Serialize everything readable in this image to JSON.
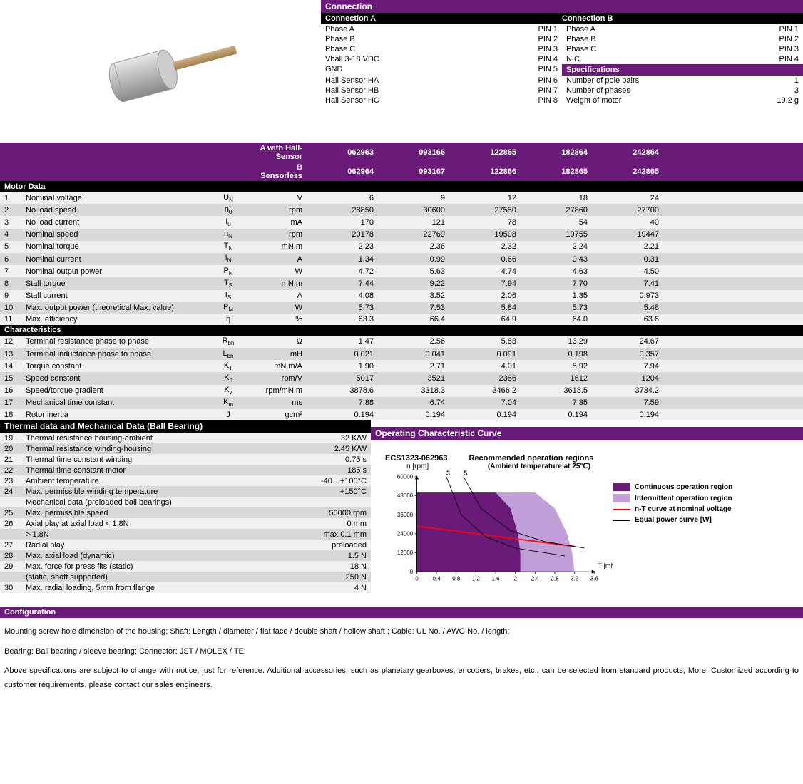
{
  "connection": {
    "title": "Connection",
    "a_title": "Connection A",
    "b_title": "Connection B",
    "a_rows": [
      {
        "label": "Phase A",
        "pin": "PIN 1"
      },
      {
        "label": "Phase B",
        "pin": "PIN 2"
      },
      {
        "label": "Phase C",
        "pin": "PIN 3"
      },
      {
        "label": "Vhall 3-18 VDC",
        "pin": "PIN 4"
      },
      {
        "label": "GND",
        "pin": "PIN 5"
      },
      {
        "label": "Hall Sensor HA",
        "pin": "PIN 6"
      },
      {
        "label": "Hall Sensor HB",
        "pin": "PIN 7"
      },
      {
        "label": "Hall Sensor HC",
        "pin": "PIN 8"
      }
    ],
    "b_rows": [
      {
        "label": "Phase A",
        "pin": "PIN 1"
      },
      {
        "label": "Phase B",
        "pin": "PIN 2"
      },
      {
        "label": "Phase C",
        "pin": "PIN 3"
      },
      {
        "label": "N.C.",
        "pin": "PIN 4"
      }
    ],
    "spec_title": "Specifications",
    "specs": [
      {
        "label": "Number of pole pairs",
        "val": "1"
      },
      {
        "label": "Number of phases",
        "val": "3"
      },
      {
        "label": "Weight of motor",
        "val": "19.2 g"
      }
    ]
  },
  "table_header": {
    "line1": "A with Hall-Sensor",
    "line2": "B Sensorless",
    "cols": [
      "062963",
      "093166",
      "122865",
      "182864",
      "242864"
    ],
    "cols2": [
      "062964",
      "093167",
      "122866",
      "182865",
      "242865"
    ]
  },
  "motor_data": {
    "title": "Motor Data",
    "rows": [
      {
        "n": "1",
        "label": "Nominal voltage",
        "sym": "U",
        "sub": "N",
        "unit": "V",
        "v": [
          "6",
          "9",
          "12",
          "18",
          "24"
        ]
      },
      {
        "n": "2",
        "label": "No load speed",
        "sym": "n",
        "sub": "0",
        "unit": "rpm",
        "v": [
          "28850",
          "30600",
          "27550",
          "27860",
          "27700"
        ]
      },
      {
        "n": "3",
        "label": "No load current",
        "sym": "I",
        "sub": "0",
        "unit": "mA",
        "v": [
          "170",
          "121",
          "78",
          "54",
          "40"
        ]
      },
      {
        "n": "4",
        "label": "Nominal speed",
        "sym": "n",
        "sub": "N",
        "unit": "rpm",
        "v": [
          "20178",
          "22769",
          "19508",
          "19755",
          "19447"
        ]
      },
      {
        "n": "5",
        "label": "Nominal torque",
        "sym": "T",
        "sub": "N",
        "unit": "mN.m",
        "v": [
          "2.23",
          "2.36",
          "2.32",
          "2.24",
          "2.21"
        ]
      },
      {
        "n": "6",
        "label": "Nominal current",
        "sym": "I",
        "sub": "N",
        "unit": "A",
        "v": [
          "1.34",
          "0.99",
          "0.66",
          "0.43",
          "0.31"
        ]
      },
      {
        "n": "7",
        "label": "Nominal output power",
        "sym": "P",
        "sub": "N",
        "unit": "W",
        "v": [
          "4.72",
          "5.63",
          "4.74",
          "4.63",
          "4.50"
        ]
      },
      {
        "n": "8",
        "label": "Stall torque",
        "sym": "T",
        "sub": "S",
        "unit": "mN.m",
        "v": [
          "7.44",
          "9.22",
          "7.94",
          "7.70",
          "7.41"
        ]
      },
      {
        "n": "9",
        "label": "Stall current",
        "sym": "I",
        "sub": "S",
        "unit": "A",
        "v": [
          "4.08",
          "3.52",
          "2.06",
          "1.35",
          "0.973"
        ]
      },
      {
        "n": "10",
        "label": "Max. output power (theoretical Max. value)",
        "sym": "P",
        "sub": "M",
        "unit": "W",
        "v": [
          "5.73",
          "7.53",
          "5.84",
          "5.73",
          "5.48"
        ]
      },
      {
        "n": "11",
        "label": "Max. efficiency",
        "sym": "η",
        "sub": "",
        "unit": "%",
        "v": [
          "63.3",
          "66.4",
          "64.9",
          "64.0",
          "63.6"
        ]
      }
    ]
  },
  "characteristics": {
    "title": "Characteristics",
    "rows": [
      {
        "n": "12",
        "label": "Terminal resistance phase to phase",
        "sym": "R",
        "sub": "bh",
        "unit": "Ω",
        "v": [
          "1.47",
          "2.56",
          "5.83",
          "13.29",
          "24.67"
        ]
      },
      {
        "n": "13",
        "label": "Terminal inductance phase to phase",
        "sym": "L",
        "sub": "bh",
        "unit": "mH",
        "v": [
          "0.021",
          "0.041",
          "0.091",
          "0.198",
          "0.357"
        ]
      },
      {
        "n": "14",
        "label": "Torque constant",
        "sym": "K",
        "sub": "T",
        "unit": "mN.m/A",
        "v": [
          "1.90",
          "2.71",
          "4.01",
          "5.92",
          "7.94"
        ]
      },
      {
        "n": "15",
        "label": "Speed constant",
        "sym": "K",
        "sub": "n",
        "unit": "rpm/V",
        "v": [
          "5017",
          "3521",
          "2386",
          "1612",
          "1204"
        ]
      },
      {
        "n": "16",
        "label": "Speed/torque gradient",
        "sym": "K",
        "sub": "v",
        "unit": "rpm/mN.m",
        "v": [
          "3878.6",
          "3318.3",
          "3466.2",
          "3618.5",
          "3734.2"
        ]
      },
      {
        "n": "17",
        "label": "Mechanical time constant",
        "sym": "K",
        "sub": "m",
        "unit": "ms",
        "v": [
          "7.88",
          "6.74",
          "7.04",
          "7.35",
          "7.59"
        ]
      },
      {
        "n": "18",
        "label": "Rotor inertia",
        "sym": "J",
        "sub": "",
        "unit": "gcm²",
        "v": [
          "0.194",
          "0.194",
          "0.194",
          "0.194",
          "0.194"
        ]
      }
    ]
  },
  "thermal": {
    "title": "Thermal data and Mechanical Data (Ball Bearing)",
    "rows": [
      {
        "n": "19",
        "label": "Thermal resistance housing-ambient",
        "val": "32 K/W"
      },
      {
        "n": "20",
        "label": "Thermal resistance winding-housing",
        "val": "2.45 K/W"
      },
      {
        "n": "21",
        "label": "Thermal time constant winding",
        "val": "0.75 s"
      },
      {
        "n": "22",
        "label": "Thermal time constant motor",
        "val": "185 s"
      },
      {
        "n": "23",
        "label": "Ambient temperature",
        "val": "-40…+100°C"
      },
      {
        "n": "24",
        "label": "Max. permissible winding temperature",
        "val": "+150°C"
      },
      {
        "n": "",
        "label": "Mechanical data (preloaded ball bearings)",
        "val": ""
      },
      {
        "n": "25",
        "label": "Max. permissible speed",
        "val": "50000 rpm"
      },
      {
        "n": "26",
        "label": "Axial play at axial load < 1.8N",
        "val": "0 mm"
      },
      {
        "n": "",
        "label": "                              > 1.8N",
        "val": "max 0.1 mm"
      },
      {
        "n": "27",
        "label": "Radial play",
        "val": "preloaded"
      },
      {
        "n": "28",
        "label": "Max. axial load (dynamic)",
        "val": "1.5 N"
      },
      {
        "n": "29",
        "label": "Max. force for press fits (static)",
        "val": "18 N"
      },
      {
        "n": "",
        "label": "(static, shaft supported)",
        "val": "250 N"
      },
      {
        "n": "30",
        "label": "Max. radial loading, 5mm from flange",
        "val": "4 N"
      }
    ]
  },
  "chart": {
    "title": "Operating Characteristic Curve",
    "model": "ECS1323-062963",
    "ylabel": "n [rpm]",
    "subtitle": "Recommended operation regions",
    "subtitle2": "(Ambient temperature at 25℃)",
    "xlabel": "T [mN.m]",
    "xlim": [
      0,
      3.6
    ],
    "xticks": [
      0,
      0.4,
      0.8,
      1.2,
      1.6,
      2.0,
      2.4,
      2.8,
      3.2,
      3.6
    ],
    "ylim": [
      0,
      60000
    ],
    "yticks": [
      0,
      12000,
      24000,
      36000,
      48000,
      60000
    ],
    "continuous_color": "#6a1b7a",
    "intermittent_color": "#c19fd9",
    "nt_color": "#ff0000",
    "power_color": "#000000",
    "bg_color": "#ffffff",
    "axis_color": "#000000",
    "continuous_region": [
      [
        0,
        50000
      ],
      [
        1.6,
        50000
      ],
      [
        1.9,
        40000
      ],
      [
        2.05,
        24000
      ],
      [
        2.1,
        12000
      ],
      [
        2.1,
        0
      ],
      [
        0,
        0
      ]
    ],
    "intermittent_region": [
      [
        0,
        50000
      ],
      [
        2.4,
        50000
      ],
      [
        2.8,
        40000
      ],
      [
        3.05,
        24000
      ],
      [
        3.15,
        12000
      ],
      [
        3.2,
        0
      ],
      [
        0,
        0
      ]
    ],
    "nt_line": [
      [
        0,
        28850
      ],
      [
        3.2,
        16000
      ]
    ],
    "power_curves": [
      {
        "label": "3",
        "pts": [
          [
            0.6,
            60000
          ],
          [
            0.9,
            36000
          ],
          [
            1.4,
            22000
          ],
          [
            2.0,
            15000
          ],
          [
            3.0,
            10000
          ]
        ]
      },
      {
        "label": "5",
        "pts": [
          [
            0.95,
            60000
          ],
          [
            1.3,
            40000
          ],
          [
            1.9,
            26000
          ],
          [
            2.6,
            19000
          ],
          [
            3.4,
            15000
          ]
        ]
      }
    ],
    "legend": [
      {
        "type": "swatch",
        "color": "#6a1b7a",
        "label": "Continuous operation region"
      },
      {
        "type": "swatch",
        "color": "#c19fd9",
        "label": "Intermittent operation region"
      },
      {
        "type": "line",
        "color": "#ff0000",
        "label": "n-T curve at nominal voltage"
      },
      {
        "type": "line",
        "color": "#000000",
        "label": "Equal power curve [W]"
      }
    ]
  },
  "config": {
    "title": "Configuration",
    "p1": "Mounting screw hole dimension of the housing;   Shaft: Length / diameter / flat face / double shaft / hollow shaft ;    Cable: UL No. / AWG No. / length;",
    "p2": "Bearing: Ball bearing / sleeve bearing;    Connector: JST / MOLEX / TE;",
    "p3": "Above specifications are subject to change with notice, just for reference.   Additional accessories, such as planetary gearboxes, encoders, brakes, etc., can be selected from standard products; More: Customized according to customer requirements, please contact our sales engineers."
  },
  "colors": {
    "purple": "#6a1b7a",
    "black": "#000000",
    "row_light": "#f0f0f0",
    "row_dark": "#d8d8d8"
  }
}
